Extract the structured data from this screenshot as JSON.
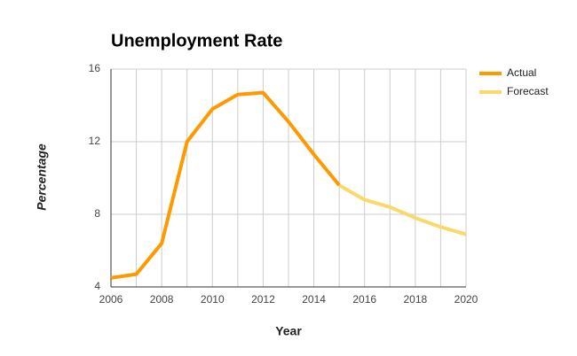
{
  "chart_data": {
    "type": "line",
    "title": "Unemployment Rate",
    "x_label": "Year",
    "y_label": "Percentage",
    "x": [
      2006,
      2007,
      2008,
      2009,
      2010,
      2011,
      2012,
      2013,
      2014,
      2015,
      2016,
      2017,
      2018,
      2019,
      2020
    ],
    "series": [
      {
        "name": "Actual",
        "color": "#ff9900",
        "values": [
          4.5,
          4.7,
          6.4,
          12.0,
          13.8,
          14.6,
          14.7,
          13.1,
          11.3,
          9.6,
          null,
          null,
          null,
          null,
          null
        ]
      },
      {
        "name": "Forecast",
        "color": "#fcd86a",
        "values": [
          null,
          null,
          null,
          null,
          null,
          null,
          null,
          null,
          null,
          9.6,
          8.8,
          8.4,
          7.8,
          7.3,
          6.9
        ]
      }
    ],
    "xlim": [
      2006,
      2020
    ],
    "xticks": [
      2006,
      2008,
      2010,
      2012,
      2014,
      2016,
      2018,
      2020
    ],
    "ylim": [
      4,
      16
    ],
    "yticks": [
      4,
      8,
      12,
      16
    ],
    "grid": true,
    "legend": "right"
  }
}
